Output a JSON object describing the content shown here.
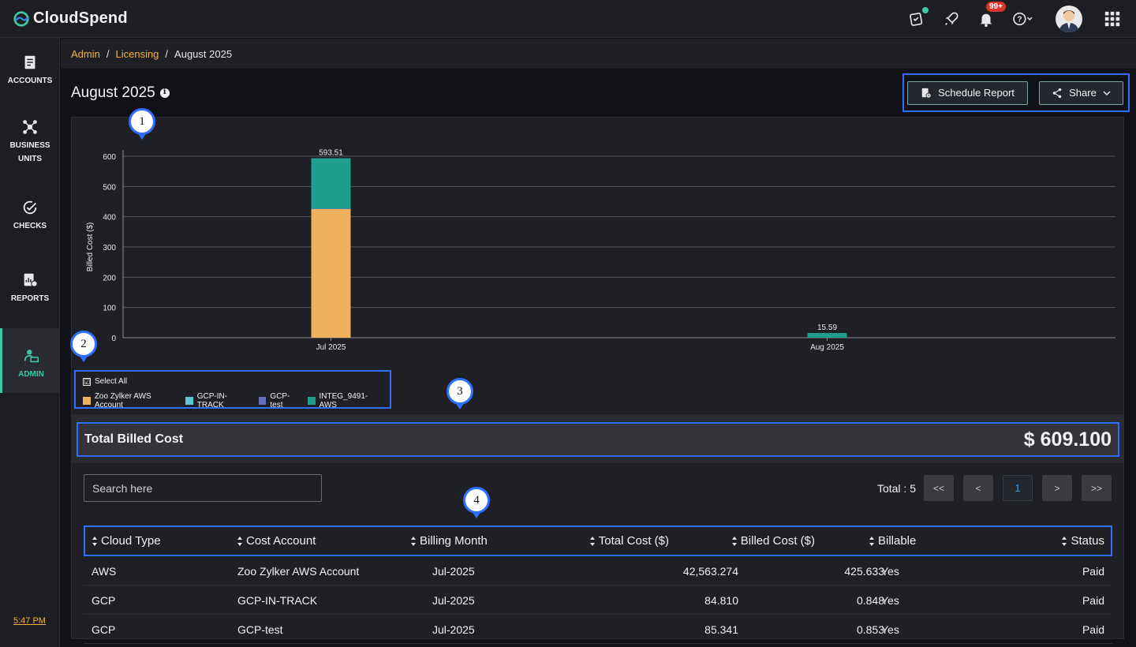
{
  "app": {
    "name": "CloudSpend",
    "notification_count": "99+",
    "time": "5:47 PM"
  },
  "sidebar": {
    "items": [
      {
        "label": "ACCOUNTS"
      },
      {
        "label": "BUSINESS UNITS"
      },
      {
        "label": "CHECKS"
      },
      {
        "label": "REPORTS"
      },
      {
        "label": "ADMIN"
      }
    ]
  },
  "breadcrumb": {
    "items": [
      "Admin",
      "Licensing"
    ],
    "current": "August 2025"
  },
  "page": {
    "title": "August 2025"
  },
  "actions": {
    "schedule_label": "Schedule Report",
    "share_label": "Share"
  },
  "markers": [
    "1",
    "2",
    "3",
    "4"
  ],
  "chart_data": {
    "type": "bar",
    "stacked": true,
    "categories": [
      "Jul 2025",
      "Aug 2025"
    ],
    "series": [
      {
        "name": "Zoo Zylker AWS Account",
        "values": [
          425.633,
          0
        ],
        "color": "#f0b15e"
      },
      {
        "name": "GCP-IN-TRACK",
        "values": [
          0.848,
          0
        ],
        "color": "#5ec5d8"
      },
      {
        "name": "GCP-test",
        "values": [
          0.853,
          0
        ],
        "color": "#6170b8"
      },
      {
        "name": "INTEG_9491-AWS",
        "values": [
          166.176,
          15.59
        ],
        "color": "#1f9e8e"
      }
    ],
    "totals": [
      "593.51",
      "15.59"
    ],
    "ylabel": "Billed Cost ($)",
    "ylim": [
      0,
      600
    ],
    "yticks": [
      "0",
      "100",
      "200",
      "300",
      "400",
      "500",
      "600"
    ],
    "grid": true
  },
  "legend": {
    "select_all": "Select All",
    "check": "☑"
  },
  "total": {
    "label": "Total Billed Cost",
    "value": "$ 609.100"
  },
  "search": {
    "placeholder": "Search here"
  },
  "pager": {
    "total": "Total : 5",
    "first": "<<",
    "prev": "<",
    "current": "1",
    "next": ">",
    "last": ">>"
  },
  "table": {
    "columns": [
      "Cloud Type",
      "Cost Account",
      "Billing Month",
      "Total Cost ($)",
      "Billed Cost ($)",
      "Billable",
      "Status"
    ],
    "rows": [
      [
        "AWS",
        "Zoo Zylker AWS Account",
        "Jul-2025",
        "42,563.274",
        "425.633",
        "Yes",
        "Paid"
      ],
      [
        "GCP",
        "GCP-IN-TRACK",
        "Jul-2025",
        "84.810",
        "0.848",
        "Yes",
        "Paid"
      ],
      [
        "GCP",
        "GCP-test",
        "Jul-2025",
        "85.341",
        "0.853",
        "Yes",
        "Paid"
      ]
    ]
  }
}
